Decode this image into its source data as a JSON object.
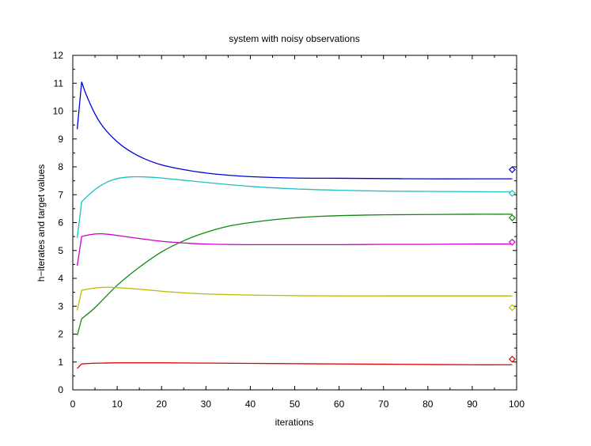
{
  "chart_data": {
    "type": "line",
    "title": "system with noisy observations",
    "xlabel": "iterations",
    "ylabel": "h−iterates and target values",
    "xlim": [
      0,
      100
    ],
    "ylim": [
      0,
      12
    ],
    "xticks": [
      0,
      10,
      20,
      30,
      40,
      50,
      60,
      70,
      80,
      90,
      100
    ],
    "yticks": [
      0,
      1,
      2,
      3,
      4,
      5,
      6,
      7,
      8,
      9,
      10,
      11,
      12
    ],
    "xtick_labels": [
      "0",
      "10",
      "20",
      "30",
      "40",
      "50",
      "60",
      "70",
      "80",
      "90",
      "100"
    ],
    "ytick_labels": [
      "0",
      "1",
      "2",
      "3",
      "4",
      "5",
      "6",
      "7",
      "8",
      "9",
      "10",
      "11",
      "12"
    ],
    "grid": false,
    "legend": "none",
    "series": [
      {
        "color": "#0000dd",
        "x": [
          1,
          2,
          3,
          5,
          7,
          10,
          13,
          16,
          20,
          25,
          30,
          35,
          40,
          50,
          60,
          70,
          80,
          90,
          99
        ],
        "y": [
          9.35,
          11.05,
          10.6,
          9.9,
          9.4,
          8.9,
          8.55,
          8.3,
          8.07,
          7.9,
          7.78,
          7.7,
          7.65,
          7.6,
          7.59,
          7.58,
          7.57,
          7.57,
          7.57
        ],
        "target": 7.9
      },
      {
        "color": "#20c0c0",
        "x": [
          1,
          2,
          4,
          6,
          8,
          10,
          13,
          16,
          20,
          25,
          30,
          40,
          50,
          60,
          70,
          80,
          90,
          99
        ],
        "y": [
          5.45,
          6.75,
          7.05,
          7.3,
          7.47,
          7.58,
          7.64,
          7.64,
          7.6,
          7.52,
          7.44,
          7.3,
          7.21,
          7.16,
          7.13,
          7.12,
          7.11,
          7.1
        ],
        "target": 7.05
      },
      {
        "color": "#118811",
        "x": [
          1,
          2,
          5,
          10,
          15,
          20,
          25,
          30,
          35,
          40,
          45,
          50,
          55,
          60,
          70,
          80,
          90,
          99
        ],
        "y": [
          1.95,
          2.55,
          2.95,
          3.75,
          4.4,
          4.95,
          5.35,
          5.65,
          5.87,
          6.0,
          6.1,
          6.17,
          6.22,
          6.25,
          6.28,
          6.29,
          6.3,
          6.3
        ],
        "target": 6.17
      },
      {
        "color": "#cc00cc",
        "x": [
          1,
          2,
          4,
          6,
          8,
          10,
          15,
          20,
          25,
          30,
          40,
          50,
          60,
          70,
          80,
          90,
          99
        ],
        "y": [
          4.45,
          5.5,
          5.57,
          5.6,
          5.58,
          5.54,
          5.43,
          5.33,
          5.27,
          5.23,
          5.21,
          5.21,
          5.21,
          5.22,
          5.22,
          5.23,
          5.23
        ],
        "target": 5.3
      },
      {
        "color": "#bbbb00",
        "x": [
          1,
          2,
          4,
          6,
          8,
          10,
          15,
          20,
          25,
          30,
          40,
          50,
          60,
          70,
          80,
          90,
          99
        ],
        "y": [
          2.85,
          3.57,
          3.63,
          3.67,
          3.68,
          3.67,
          3.61,
          3.54,
          3.48,
          3.44,
          3.4,
          3.38,
          3.37,
          3.37,
          3.37,
          3.37,
          3.37
        ],
        "target": 2.95
      },
      {
        "color": "#dd0000",
        "x": [
          1,
          2,
          4,
          6,
          10,
          15,
          20,
          30,
          40,
          50,
          60,
          70,
          80,
          90,
          99
        ],
        "y": [
          0.77,
          0.93,
          0.95,
          0.96,
          0.97,
          0.97,
          0.97,
          0.96,
          0.95,
          0.94,
          0.93,
          0.92,
          0.91,
          0.9,
          0.9
        ],
        "target": 1.1
      }
    ]
  }
}
